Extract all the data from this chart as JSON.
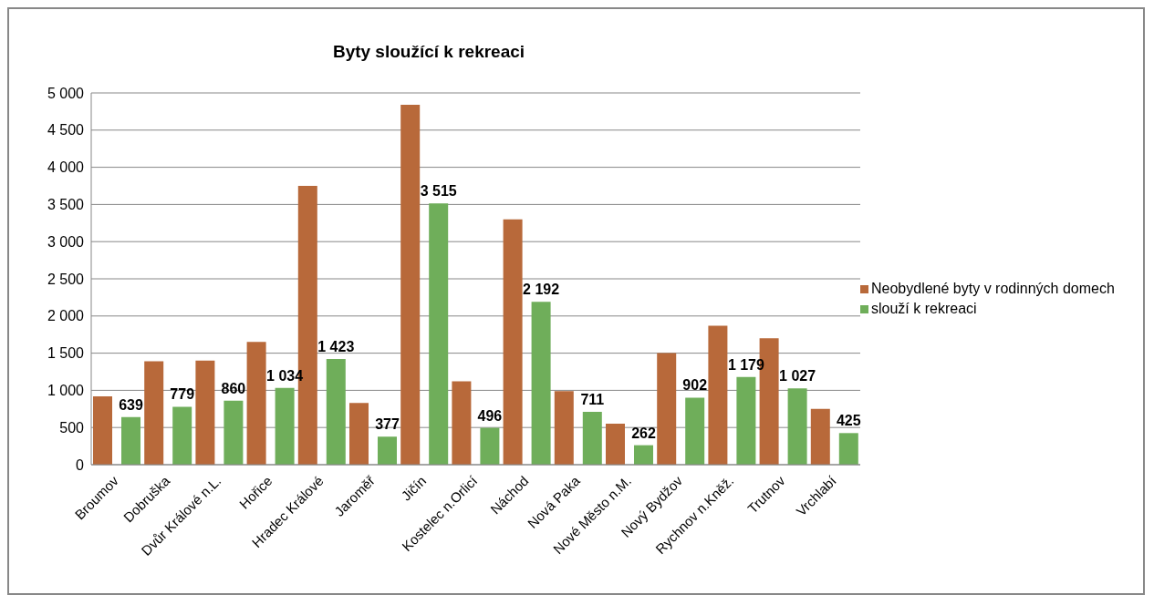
{
  "chart_data": {
    "type": "bar",
    "title": "Byty sloužící k rekreaci",
    "categories": [
      "Broumov",
      "Dobruška",
      "Dvůr Králové n.L.",
      "Hořice",
      "Hradec Králové",
      "Jaroměř",
      "Jičín",
      "Kostelec n.Orlicí",
      "Náchod",
      "Nová Paka",
      "Nové Město n.M.",
      "Nový Bydžov",
      "Rychnov n.Kněž.",
      "Trutnov",
      "Vrchlabí"
    ],
    "series": [
      {
        "name": "Neobydlené byty v rodinných domech",
        "color": "#b8693a",
        "values": [
          920,
          1390,
          1400,
          1650,
          3750,
          830,
          4840,
          1120,
          3300,
          990,
          550,
          1500,
          1870,
          1700,
          750
        ]
      },
      {
        "name": "slouží k rekreaci",
        "color": "#6fae5a",
        "values": [
          639,
          779,
          860,
          1034,
          1423,
          377,
          3515,
          496,
          2192,
          711,
          262,
          902,
          1179,
          1027,
          425
        ],
        "value_labels": [
          "639",
          "779",
          "860",
          "1 034",
          "1 423",
          "377",
          "3 515",
          "496",
          "2 192",
          "711",
          "262",
          "902",
          "1 179",
          "1 027",
          "425"
        ]
      }
    ],
    "ylim": [
      0,
      5000
    ],
    "yticks": [
      0,
      {
        "value": 500,
        "label": "500"
      },
      {
        "value": 1000,
        "label": "1 000"
      },
      {
        "value": 1500,
        "label": "1 500"
      },
      {
        "value": 2000,
        "label": "2 000"
      },
      {
        "value": 2500,
        "label": "2 500"
      },
      {
        "value": 3000,
        "label": "3 000"
      },
      {
        "value": 3500,
        "label": "3 500"
      },
      {
        "value": 4000,
        "label": "4 000"
      },
      {
        "value": 4500,
        "label": "4 500"
      },
      {
        "value": 5000,
        "label": "5 000"
      }
    ],
    "grid": "y",
    "legend": "right"
  }
}
